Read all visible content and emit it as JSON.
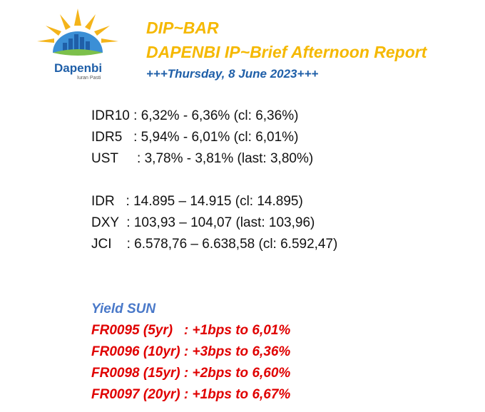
{
  "logo": {
    "brand": "Dapenbi",
    "tagline": "Iuran Pasti"
  },
  "header": {
    "title": "DIP~BAR",
    "subtitle": "DAPENBI IP~Brief Afternoon Report",
    "date": "+++Thursday, 8 June 2023+++"
  },
  "rates": [
    "IDR10 : 6,32% - 6,36% (cl: 6,36%)",
    "IDR5   : 5,94% - 6,01% (cl: 6,01%)",
    "UST     : 3,78% - 3,81% (last: 3,80%)"
  ],
  "markets": [
    "IDR   : 14.895 – 14.915 (cl: 14.895)",
    "DXY  : 103,93 – 104,07 (last: 103,96)",
    "JCI    : 6.578,76 – 6.638,58 (cl: 6.592,47)"
  ],
  "yield": {
    "title": "Yield SUN",
    "items": [
      "FR0095 (5yr)   : +1bps to 6,01%",
      "FR0096 (10yr) : +3bps to 6,36%",
      "FR0098 (15yr) : +2bps to 6,60%",
      "FR0097 (20yr) : +1bps to 6,67%"
    ]
  },
  "colors": {
    "gold": "#f5b800",
    "blue": "#1f5fa8",
    "yield_blue": "#4a79c9",
    "red": "#e00000"
  }
}
